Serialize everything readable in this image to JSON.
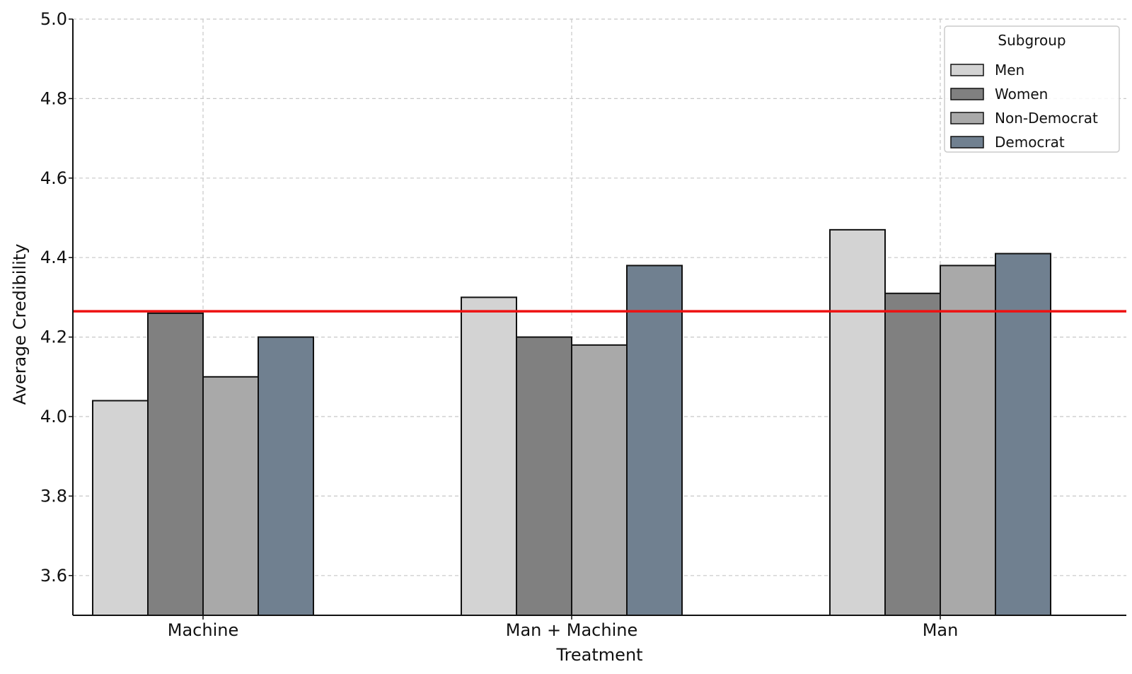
{
  "chart_data": {
    "type": "bar",
    "title": "",
    "xlabel": "Treatment",
    "ylabel": "Average Credibility",
    "categories": [
      "Machine",
      "Man + Machine",
      "Man"
    ],
    "series": [
      {
        "name": "Men",
        "color": "#d3d3d3",
        "values": [
          4.04,
          4.3,
          4.47
        ]
      },
      {
        "name": "Women",
        "color": "#808080",
        "values": [
          4.26,
          4.2,
          4.31
        ]
      },
      {
        "name": "Non-Democrat",
        "color": "#a9a9a9",
        "values": [
          4.1,
          4.18,
          4.38
        ]
      },
      {
        "name": "Democrat",
        "color": "#708090",
        "values": [
          4.2,
          4.38,
          4.41
        ]
      }
    ],
    "ylim": [
      3.5,
      5.0
    ],
    "yticks": [
      "3.6",
      "3.8",
      "4.0",
      "4.2",
      "4.4",
      "4.6",
      "4.8",
      "5.0"
    ],
    "reference_line": {
      "value": 4.265,
      "color": "#ee1111"
    },
    "legend": {
      "title": "Subgroup",
      "position": "top-right"
    },
    "grid": true
  }
}
